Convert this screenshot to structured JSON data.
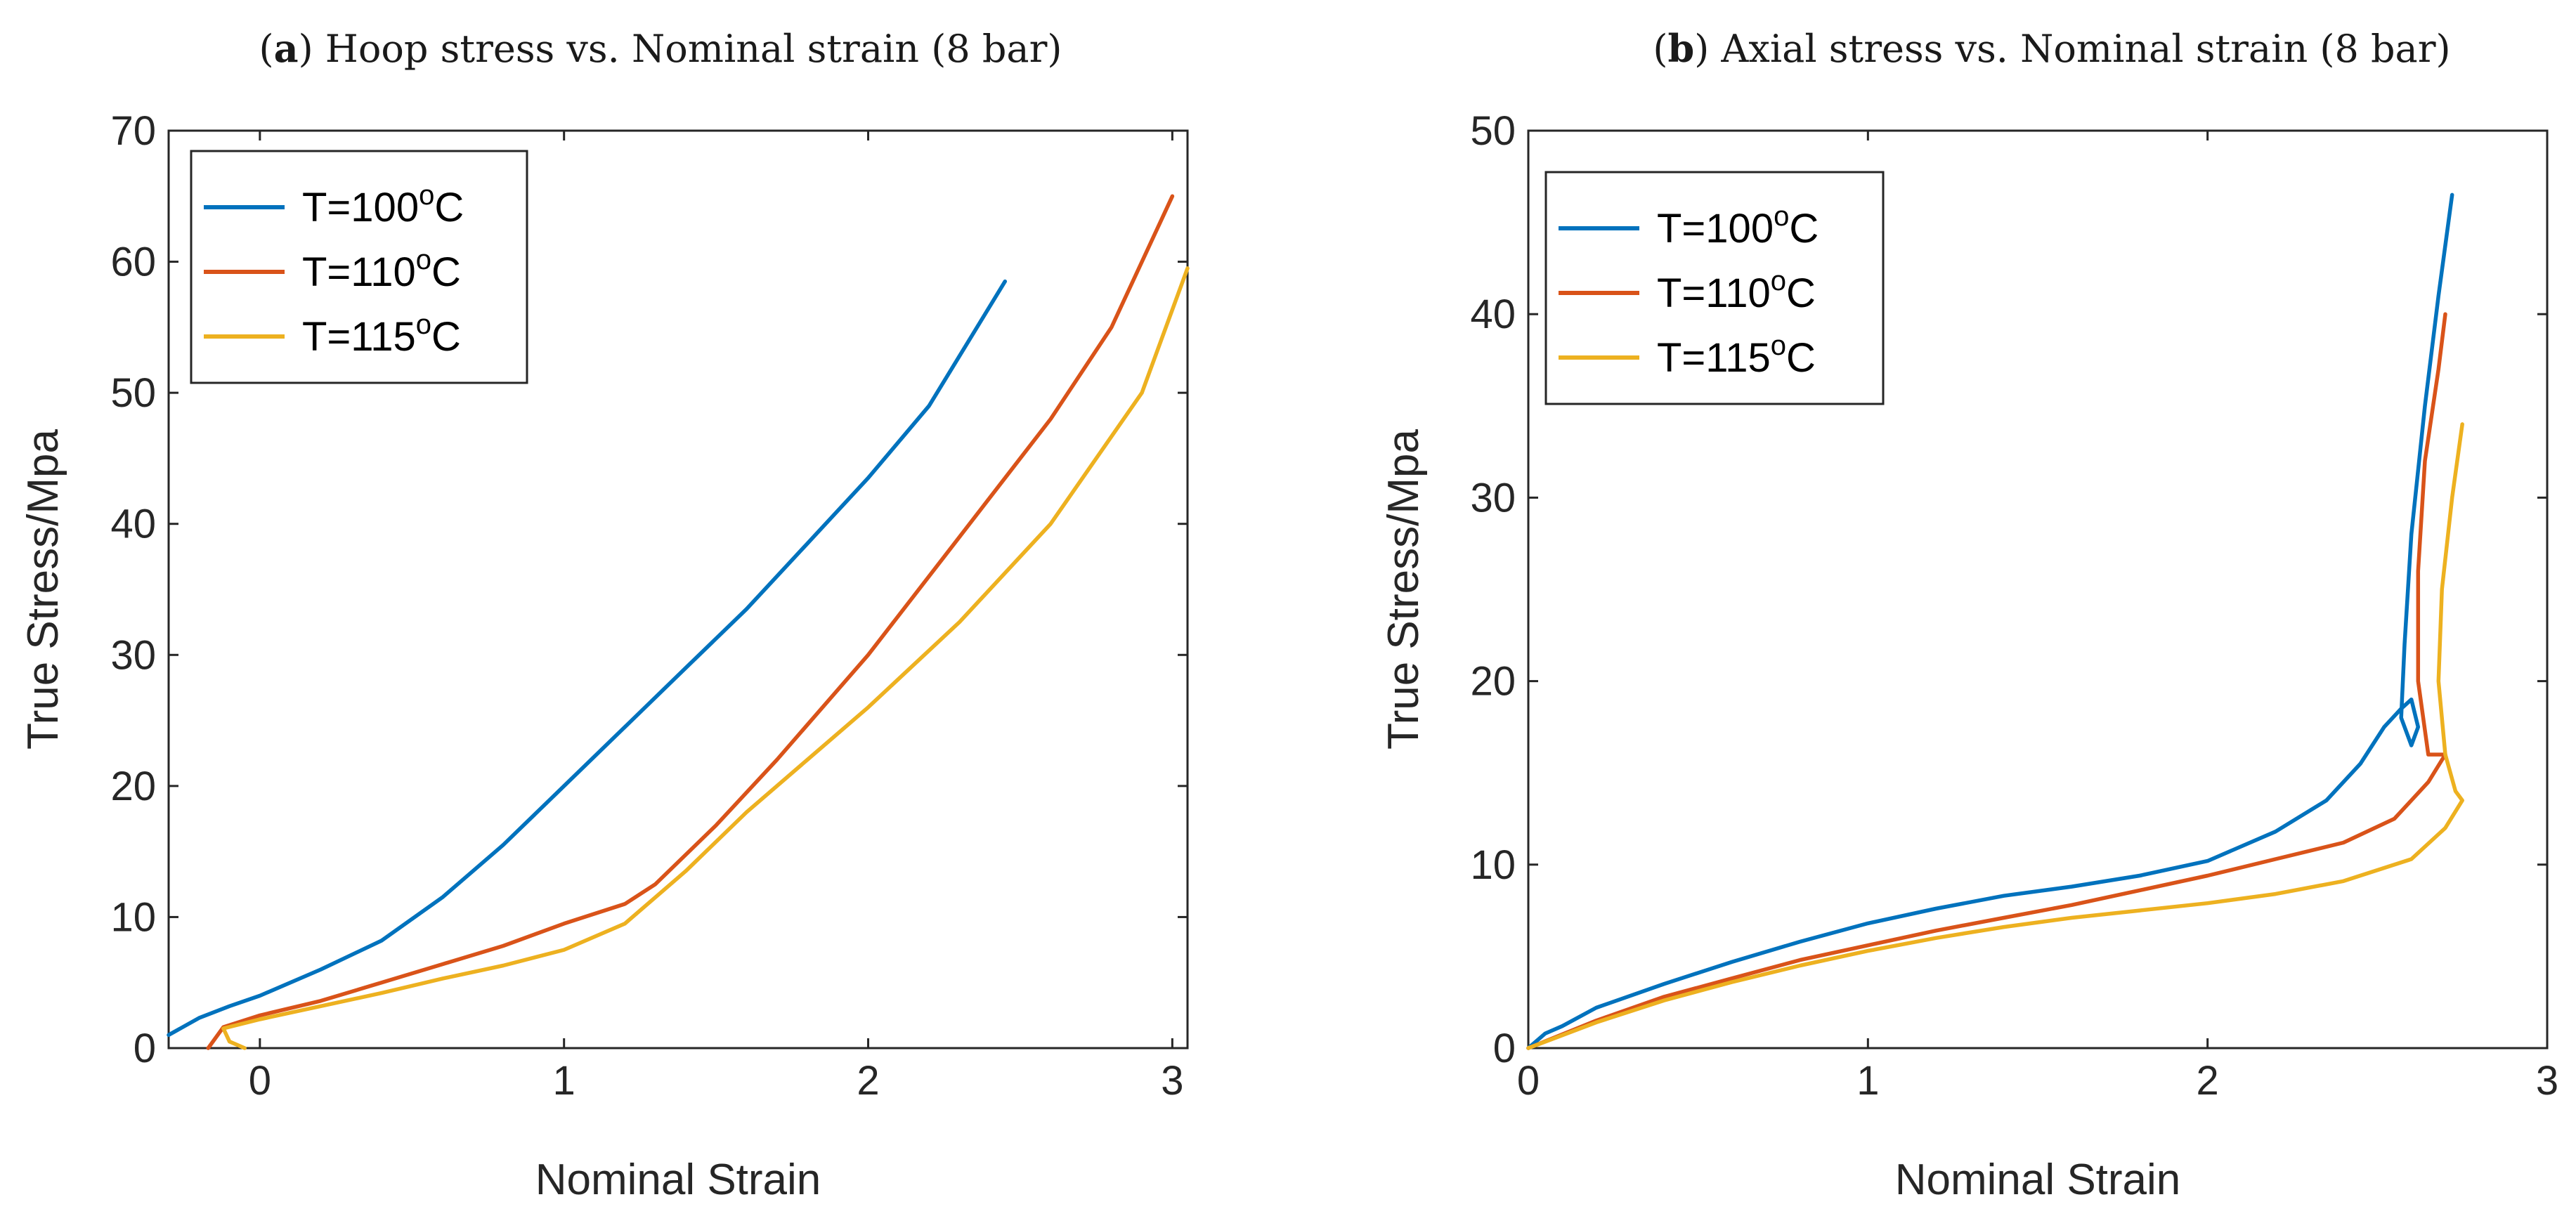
{
  "chart_data": [
    {
      "type": "line",
      "panel_letter": "a",
      "title_rest": ") Hoop stress vs. Nominal strain (8 bar)",
      "xlabel": "Nominal Strain",
      "ylabel": "True Stress/Mpa",
      "xlim": [
        -0.3,
        3.05
      ],
      "ylim": [
        0,
        70
      ],
      "xticks": [
        0,
        1,
        2,
        3
      ],
      "yticks": [
        0,
        10,
        20,
        30,
        40,
        50,
        60,
        70
      ],
      "grid": false,
      "legend_position": "top-left",
      "series": [
        {
          "name": "T=100",
          "sup": "o",
          "unit": "C",
          "color": "#0072BD",
          "x": [
            -0.3,
            -0.2,
            -0.1,
            0,
            0.2,
            0.4,
            0.6,
            0.8,
            1.0,
            1.2,
            1.4,
            1.6,
            1.8,
            2.0,
            2.2,
            2.45
          ],
          "y": [
            1,
            2.3,
            3.2,
            4,
            6,
            8.2,
            11.5,
            15.5,
            20,
            24.5,
            29,
            33.5,
            38.5,
            43.5,
            49,
            58.5
          ]
        },
        {
          "name": "T=110",
          "sup": "o",
          "unit": "C",
          "color": "#D95319",
          "x": [
            -0.17,
            -0.12,
            0,
            0.2,
            0.4,
            0.6,
            0.8,
            1.0,
            1.2,
            1.3,
            1.5,
            1.7,
            2.0,
            2.3,
            2.6,
            2.8,
            3.0
          ],
          "y": [
            0,
            1.6,
            2.5,
            3.6,
            5,
            6.4,
            7.8,
            9.5,
            11,
            12.5,
            17,
            22,
            30,
            39,
            48,
            55,
            65
          ]
        },
        {
          "name": "T=115",
          "sup": "o",
          "unit": "C",
          "color": "#EDB120",
          "x": [
            -0.05,
            -0.1,
            -0.12,
            0,
            0.2,
            0.4,
            0.6,
            0.8,
            1.0,
            1.2,
            1.4,
            1.6,
            1.8,
            2.0,
            2.3,
            2.6,
            2.9,
            3.05
          ],
          "y": [
            0,
            0.5,
            1.5,
            2.2,
            3.2,
            4.2,
            5.3,
            6.3,
            7.5,
            9.5,
            13.5,
            18,
            22,
            26,
            32.5,
            40,
            50,
            59.5
          ]
        }
      ]
    },
    {
      "type": "line",
      "panel_letter": "b",
      "title_rest": ") Axial stress vs. Nominal strain (8 bar)",
      "xlabel": "Nominal Strain",
      "ylabel": "True Stress/Mpa",
      "xlim": [
        0,
        3
      ],
      "ylim": [
        0,
        50
      ],
      "xticks": [
        0,
        1,
        2,
        3
      ],
      "yticks": [
        0,
        10,
        20,
        30,
        40,
        50
      ],
      "grid": false,
      "legend_position": "top-left",
      "series": [
        {
          "name": "T=100",
          "sup": "o",
          "unit": "C",
          "color": "#0072BD",
          "x": [
            0,
            0.05,
            0.1,
            0.2,
            0.4,
            0.6,
            0.8,
            1.0,
            1.2,
            1.4,
            1.6,
            1.8,
            2.0,
            2.2,
            2.35,
            2.45,
            2.52,
            2.57,
            2.6,
            2.62,
            2.6,
            2.57,
            2.58,
            2.6,
            2.64,
            2.68,
            2.72
          ],
          "y": [
            0,
            0.8,
            1.2,
            2.2,
            3.5,
            4.7,
            5.8,
            6.8,
            7.6,
            8.3,
            8.8,
            9.4,
            10.2,
            11.8,
            13.5,
            15.5,
            17.5,
            18.5,
            19,
            17.5,
            16.5,
            18,
            22,
            28,
            35,
            41,
            46.5
          ]
        },
        {
          "name": "T=110",
          "sup": "o",
          "unit": "C",
          "color": "#D95319",
          "x": [
            0,
            0.2,
            0.4,
            0.6,
            0.8,
            1.0,
            1.2,
            1.4,
            1.6,
            1.8,
            2.0,
            2.2,
            2.4,
            2.55,
            2.65,
            2.7,
            2.65,
            2.62,
            2.62,
            2.64,
            2.68,
            2.7
          ],
          "y": [
            0,
            1.5,
            2.8,
            3.8,
            4.8,
            5.6,
            6.4,
            7.1,
            7.8,
            8.6,
            9.4,
            10.3,
            11.2,
            12.5,
            14.5,
            16,
            16,
            20,
            26,
            32,
            37,
            40
          ]
        },
        {
          "name": "T=115",
          "sup": "o",
          "unit": "C",
          "color": "#EDB120",
          "x": [
            0,
            0.2,
            0.4,
            0.6,
            0.8,
            1.0,
            1.2,
            1.4,
            1.6,
            1.8,
            2.0,
            2.2,
            2.4,
            2.6,
            2.7,
            2.75,
            2.73,
            2.7,
            2.68,
            2.69,
            2.72,
            2.75
          ],
          "y": [
            0,
            1.4,
            2.6,
            3.6,
            4.5,
            5.3,
            6,
            6.6,
            7.1,
            7.5,
            7.9,
            8.4,
            9.1,
            10.3,
            12,
            13.5,
            14,
            16,
            20,
            25,
            30,
            34
          ]
        }
      ]
    }
  ]
}
